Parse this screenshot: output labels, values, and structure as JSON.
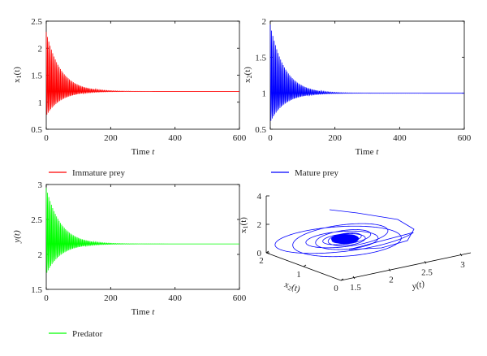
{
  "chart_data": [
    {
      "type": "line",
      "xlabel": "Time t",
      "ylabel": "x1(t)",
      "xlim": [
        0,
        600
      ],
      "ylim": [
        0.5,
        2.5
      ],
      "xticks": [
        "0",
        "200",
        "400",
        "600"
      ],
      "yticks": [
        "0.5",
        "1",
        "1.5",
        "2",
        "2.5"
      ],
      "series": [
        {
          "name": "Immature prey",
          "color": "#ff0000",
          "equilibrium": 1.2,
          "initial_max": 2.3,
          "initial_min": 0.75,
          "decay": 45,
          "period": 4
        }
      ]
    },
    {
      "type": "line",
      "xlabel": "Time t",
      "ylabel": "x2(t)",
      "xlim": [
        0,
        600
      ],
      "ylim": [
        0.5,
        2
      ],
      "xticks": [
        "0",
        "200",
        "400",
        "600"
      ],
      "yticks": [
        "0.5",
        "1",
        "1.5",
        "2"
      ],
      "series": [
        {
          "name": "Mature prey",
          "color": "#0000ff",
          "equilibrium": 1.0,
          "initial_max": 1.95,
          "initial_min": 0.6,
          "decay": 45,
          "period": 4
        }
      ]
    },
    {
      "type": "line",
      "xlabel": "Time t",
      "ylabel": "y(t)",
      "xlim": [
        0,
        600
      ],
      "ylim": [
        1.5,
        3
      ],
      "xticks": [
        "0",
        "200",
        "400",
        "600"
      ],
      "yticks": [
        "1.5",
        "2",
        "2.5",
        "3"
      ],
      "series": [
        {
          "name": "Predator",
          "color": "#00ff00",
          "equilibrium": 2.15,
          "initial_max": 2.95,
          "initial_min": 1.72,
          "decay": 45,
          "period": 4
        }
      ]
    },
    {
      "type": "line3d",
      "xlabel": "x2(t)",
      "ylabel": "y(t)",
      "zlabel": "x1(t)",
      "x_axis_ticks": [
        "0",
        "1",
        "2"
      ],
      "y_axis_ticks": [
        "1.5",
        "2",
        "2.5",
        "3"
      ],
      "z_axis_ticks": [
        "0",
        "2",
        "4"
      ],
      "xlim": [
        0,
        2
      ],
      "ylim": [
        1.5,
        3
      ],
      "zlim": [
        0,
        4
      ],
      "color": "#0000ff",
      "equilibrium": {
        "x2": 1.0,
        "y": 2.15,
        "x1": 1.2
      }
    }
  ]
}
